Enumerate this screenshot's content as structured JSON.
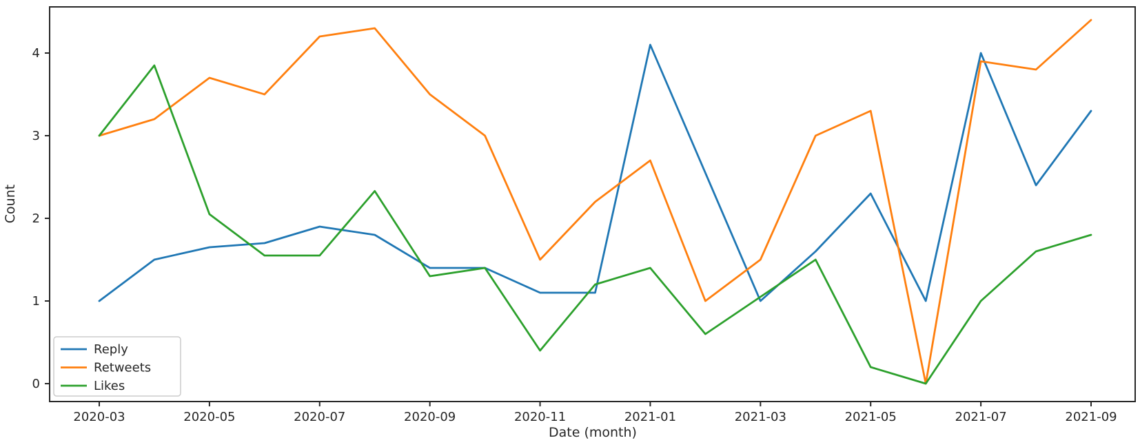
{
  "figure": {
    "background": "#ffffff",
    "spine_color": "#262626"
  },
  "chart_data": {
    "type": "line",
    "title": "",
    "xlabel": "Date (month)",
    "ylabel": "Count",
    "x": [
      "2020-03",
      "2020-04",
      "2020-05",
      "2020-06",
      "2020-07",
      "2020-08",
      "2020-09",
      "2020-10",
      "2020-11",
      "2020-12",
      "2021-01",
      "2021-02",
      "2021-03",
      "2021-04",
      "2021-05",
      "2021-06",
      "2021-07",
      "2021-08",
      "2021-09"
    ],
    "series": [
      {
        "name": "Reply",
        "color": "#1f77b4",
        "values": [
          1.0,
          1.5,
          1.65,
          1.7,
          1.9,
          1.8,
          1.4,
          1.4,
          1.1,
          1.1,
          4.1,
          2.55,
          1.0,
          1.6,
          2.3,
          1.0,
          4.0,
          2.4,
          3.3
        ]
      },
      {
        "name": "Retweets",
        "color": "#ff7f0e",
        "values": [
          3.0,
          3.2,
          3.7,
          3.5,
          4.2,
          4.3,
          3.5,
          3.0,
          1.5,
          2.2,
          2.7,
          1.0,
          1.5,
          3.0,
          3.3,
          0.0,
          3.9,
          3.8,
          4.4
        ]
      },
      {
        "name": "Likes",
        "color": "#2ca02c",
        "values": [
          3.0,
          3.85,
          2.05,
          1.55,
          1.55,
          2.33,
          1.3,
          1.4,
          0.4,
          1.2,
          1.4,
          0.6,
          1.05,
          1.5,
          0.2,
          0.0,
          1.0,
          1.6,
          1.8
        ]
      }
    ],
    "x_tick_labels": [
      "2020-03",
      "2020-05",
      "2020-07",
      "2020-09",
      "2020-11",
      "2021-01",
      "2021-03",
      "2021-05",
      "2021-07",
      "2021-09"
    ],
    "x_tick_every": 2,
    "yticks": [
      0,
      1,
      2,
      3,
      4
    ],
    "ylim": [
      -0.22,
      4.62
    ],
    "grid": false,
    "legend_position": "lower left",
    "legend_labels": [
      "Reply",
      "Retweets",
      "Likes"
    ]
  }
}
